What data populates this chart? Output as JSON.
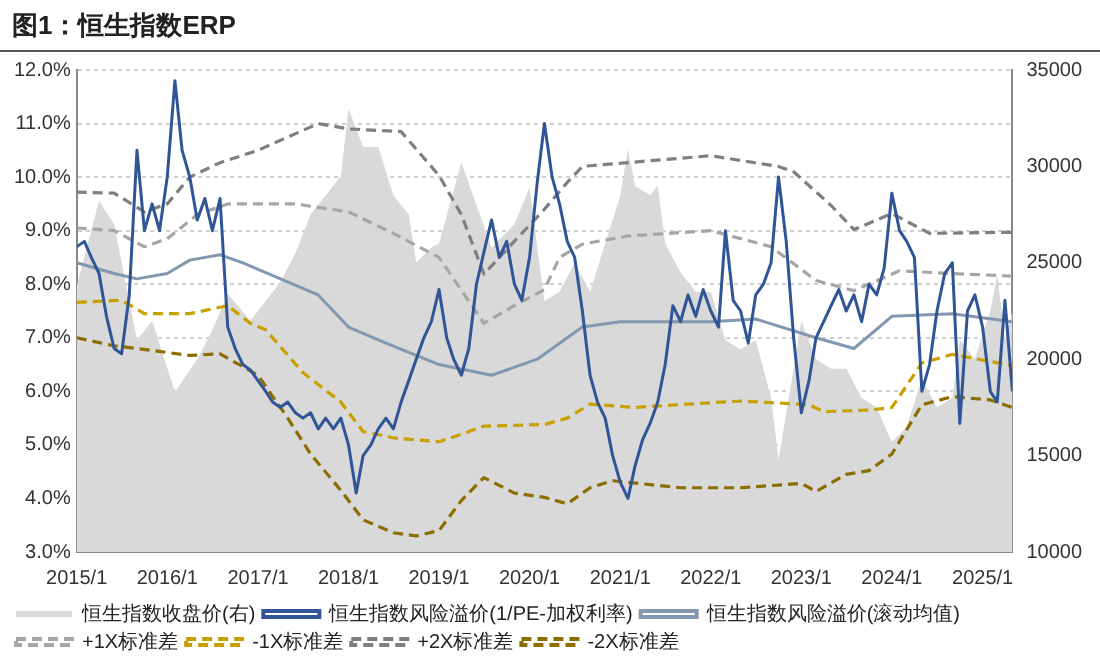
{
  "chart_data": {
    "type": "line",
    "title": "图1：恒生指数ERP",
    "xlim": [
      "2015-01",
      "2025-05"
    ],
    "xticks": [
      {
        "value": "2015-01",
        "label": "2015/1"
      },
      {
        "value": "2016-01",
        "label": "2016/1"
      },
      {
        "value": "2017-01",
        "label": "2017/1"
      },
      {
        "value": "2018-01",
        "label": "2018/1"
      },
      {
        "value": "2019-01",
        "label": "2019/1"
      },
      {
        "value": "2020-01",
        "label": "2020/1"
      },
      {
        "value": "2021-01",
        "label": "2021/1"
      },
      {
        "value": "2022-01",
        "label": "2022/1"
      },
      {
        "value": "2023-01",
        "label": "2023/1"
      },
      {
        "value": "2024-01",
        "label": "2024/1"
      },
      {
        "value": "2025-01",
        "label": "2025/1"
      }
    ],
    "ylim": [
      3,
      12
    ],
    "yticks": [
      {
        "value": 3,
        "label": "3.0%"
      },
      {
        "value": 4,
        "label": "4.0%"
      },
      {
        "value": 5,
        "label": "5.0%"
      },
      {
        "value": 6,
        "label": "6.0%"
      },
      {
        "value": 7,
        "label": "7.0%"
      },
      {
        "value": 8,
        "label": "8.0%"
      },
      {
        "value": 9,
        "label": "9.0%"
      },
      {
        "value": 10,
        "label": "10.0%"
      },
      {
        "value": 11,
        "label": "11.0%"
      },
      {
        "value": 12,
        "label": "12.0%"
      }
    ],
    "y2lim": [
      10000,
      35000
    ],
    "y2ticks": [
      10000,
      15000,
      20000,
      25000,
      30000,
      35000
    ],
    "grid": "y",
    "legend": "bottom",
    "marker": "none",
    "series": [
      {
        "name": "恒生指数收盘价(右)",
        "type": "area",
        "axis": "y2",
        "color": "#d9d9d9",
        "x": [
          "2015-01",
          "2015-04",
          "2015-06",
          "2015-08",
          "2015-09",
          "2015-11",
          "2016-02",
          "2016-05",
          "2016-07",
          "2016-09",
          "2016-12",
          "2017-01",
          "2017-04",
          "2017-06",
          "2017-08",
          "2017-10",
          "2017-12",
          "2018-01",
          "2018-03",
          "2018-05",
          "2018-07",
          "2018-09",
          "2018-10",
          "2018-12",
          "2019-01",
          "2019-04",
          "2019-06",
          "2019-08",
          "2019-11",
          "2020-01",
          "2020-03",
          "2020-05",
          "2020-07",
          "2020-09",
          "2020-11",
          "2021-01",
          "2021-02",
          "2021-03",
          "2021-05",
          "2021-06",
          "2021-07",
          "2021-09",
          "2021-11",
          "2022-01",
          "2022-03",
          "2022-05",
          "2022-07",
          "2022-09",
          "2022-10",
          "2022-12",
          "2023-01",
          "2023-03",
          "2023-05",
          "2023-07",
          "2023-09",
          "2023-11",
          "2024-01",
          "2024-03",
          "2024-05",
          "2024-07",
          "2024-09",
          "2024-10",
          "2024-12",
          "2025-02",
          "2025-03",
          "2025-04",
          "2025-05"
        ],
        "values": [
          23800,
          28200,
          27000,
          23000,
          21000,
          22000,
          18300,
          20000,
          21500,
          23400,
          22000,
          22500,
          24000,
          25500,
          27500,
          28500,
          29500,
          33000,
          31000,
          31000,
          28500,
          27500,
          25000,
          25800,
          26000,
          30200,
          28000,
          25800,
          27000,
          28900,
          23000,
          23500,
          25000,
          23500,
          26000,
          28500,
          30900,
          29000,
          28500,
          29000,
          26000,
          24500,
          23500,
          23500,
          21000,
          20500,
          21000,
          18000,
          14800,
          19500,
          22000,
          20000,
          19500,
          19500,
          18000,
          17500,
          15700,
          16500,
          19000,
          17500,
          18000,
          21000,
          20000,
          22500,
          24400,
          21000,
          22500
        ]
      },
      {
        "name": "恒生指数风险溢价(1/PE-加权利率)",
        "type": "line",
        "color": "#2f5597",
        "x": [
          "2015-01",
          "2015-02",
          "2015-03",
          "2015-04",
          "2015-05",
          "2015-06",
          "2015-07",
          "2015-08",
          "2015-09",
          "2015-10",
          "2015-11",
          "2015-12",
          "2016-01",
          "2016-02",
          "2016-03",
          "2016-04",
          "2016-05",
          "2016-06",
          "2016-07",
          "2016-08",
          "2016-09",
          "2016-10",
          "2016-11",
          "2016-12",
          "2017-01",
          "2017-02",
          "2017-03",
          "2017-04",
          "2017-05",
          "2017-06",
          "2017-07",
          "2017-08",
          "2017-09",
          "2017-10",
          "2017-11",
          "2017-12",
          "2018-01",
          "2018-02",
          "2018-03",
          "2018-04",
          "2018-05",
          "2018-06",
          "2018-07",
          "2018-08",
          "2018-09",
          "2018-10",
          "2018-11",
          "2018-12",
          "2019-01",
          "2019-02",
          "2019-03",
          "2019-04",
          "2019-05",
          "2019-06",
          "2019-07",
          "2019-08",
          "2019-09",
          "2019-10",
          "2019-11",
          "2019-12",
          "2020-01",
          "2020-02",
          "2020-03",
          "2020-04",
          "2020-05",
          "2020-06",
          "2020-07",
          "2020-08",
          "2020-09",
          "2020-10",
          "2020-11",
          "2020-12",
          "2021-01",
          "2021-02",
          "2021-03",
          "2021-04",
          "2021-05",
          "2021-06",
          "2021-07",
          "2021-08",
          "2021-09",
          "2021-10",
          "2021-11",
          "2021-12",
          "2022-01",
          "2022-02",
          "2022-03",
          "2022-04",
          "2022-05",
          "2022-06",
          "2022-07",
          "2022-08",
          "2022-09",
          "2022-10",
          "2022-11",
          "2022-12",
          "2023-01",
          "2023-02",
          "2023-03",
          "2023-04",
          "2023-05",
          "2023-06",
          "2023-07",
          "2023-08",
          "2023-09",
          "2023-10",
          "2023-11",
          "2023-12",
          "2024-01",
          "2024-02",
          "2024-03",
          "2024-04",
          "2024-05",
          "2024-06",
          "2024-07",
          "2024-08",
          "2024-09",
          "2024-10",
          "2024-11",
          "2024-12",
          "2025-01",
          "2025-02",
          "2025-03",
          "2025-04",
          "2025-05"
        ],
        "values": [
          8.7,
          8.8,
          8.5,
          8.2,
          7.4,
          6.8,
          6.7,
          7.8,
          10.5,
          9.0,
          9.5,
          9.0,
          10.0,
          11.8,
          10.5,
          10.0,
          9.2,
          9.6,
          9.0,
          9.6,
          7.2,
          6.8,
          6.5,
          6.4,
          6.2,
          6.0,
          5.8,
          5.7,
          5.8,
          5.6,
          5.5,
          5.6,
          5.3,
          5.5,
          5.3,
          5.5,
          5.0,
          4.1,
          4.8,
          5.0,
          5.3,
          5.5,
          5.3,
          5.8,
          6.2,
          6.6,
          7.0,
          7.3,
          7.9,
          7.0,
          6.6,
          6.3,
          6.8,
          8.0,
          8.6,
          9.2,
          8.5,
          8.8,
          8.0,
          7.7,
          8.5,
          9.9,
          11.0,
          10.0,
          9.5,
          8.8,
          8.5,
          7.5,
          6.3,
          5.8,
          5.5,
          4.8,
          4.3,
          4.0,
          4.6,
          5.1,
          5.4,
          5.8,
          6.5,
          7.6,
          7.3,
          7.8,
          7.4,
          7.9,
          7.5,
          7.2,
          9.0,
          7.7,
          7.5,
          6.9,
          7.8,
          8.0,
          8.4,
          10.0,
          8.8,
          7.0,
          5.6,
          6.2,
          7.0,
          7.3,
          7.6,
          7.9,
          7.5,
          7.8,
          7.3,
          8.0,
          7.8,
          8.3,
          9.7,
          9.0,
          8.8,
          8.5,
          6.0,
          6.5,
          7.5,
          8.2,
          8.4,
          5.4,
          7.5,
          7.8,
          7.2,
          6.0,
          5.8,
          7.7,
          6.0
        ]
      },
      {
        "name": "恒生指数风险溢价(滚动均值)",
        "type": "line",
        "color": "#8497b0",
        "x": [
          "2015-01",
          "2015-06",
          "2015-09",
          "2016-01",
          "2016-04",
          "2016-08",
          "2016-11",
          "2017-09",
          "2018-01",
          "2018-06",
          "2019-01",
          "2019-08",
          "2020-02",
          "2020-08",
          "2021-01",
          "2022-01",
          "2022-07",
          "2023-03",
          "2023-08",
          "2024-01",
          "2024-09",
          "2025-05"
        ],
        "values": [
          8.4,
          8.2,
          8.1,
          8.2,
          8.45,
          8.55,
          8.4,
          7.8,
          7.2,
          6.9,
          6.5,
          6.3,
          6.6,
          7.2,
          7.3,
          7.3,
          7.35,
          7.0,
          6.8,
          7.4,
          7.45,
          7.3
        ]
      },
      {
        "name": "+1X标准差",
        "type": "line",
        "line_style": "dashed",
        "color": "#a6a6a6",
        "x": [
          "2015-01",
          "2015-06",
          "2015-10",
          "2016-01",
          "2016-05",
          "2016-09",
          "2017-06",
          "2018-01",
          "2018-07",
          "2019-01",
          "2019-07",
          "2019-11",
          "2020-03",
          "2020-05",
          "2020-08",
          "2021-02",
          "2022-01",
          "2022-09",
          "2023-03",
          "2023-08",
          "2024-02",
          "2024-09",
          "2025-05"
        ],
        "values": [
          9.05,
          9.0,
          8.7,
          8.85,
          9.3,
          9.5,
          9.5,
          9.35,
          8.95,
          8.5,
          7.27,
          7.6,
          7.9,
          8.5,
          8.75,
          8.9,
          9.0,
          8.7,
          8.07,
          7.88,
          8.25,
          8.2,
          8.15
        ]
      },
      {
        "name": "-1X标准差",
        "type": "line",
        "line_style": "dashed",
        "color": "#c9a000",
        "x": [
          "2015-01",
          "2015-07",
          "2015-10",
          "2016-04",
          "2016-09",
          "2016-12",
          "2017-02",
          "2017-07",
          "2017-12",
          "2018-03",
          "2018-07",
          "2019-01",
          "2019-04",
          "2019-07",
          "2020-03",
          "2020-06",
          "2020-09",
          "2021-03",
          "2022-05",
          "2023-02",
          "2023-04",
          "2023-10",
          "2024-01",
          "2024-05",
          "2024-09",
          "2025-05"
        ],
        "values": [
          7.66,
          7.7,
          7.45,
          7.45,
          7.6,
          7.27,
          7.15,
          6.35,
          5.8,
          5.25,
          5.13,
          5.06,
          5.2,
          5.35,
          5.38,
          5.5,
          5.76,
          5.7,
          5.82,
          5.75,
          5.62,
          5.65,
          5.7,
          6.53,
          6.69,
          6.48
        ]
      },
      {
        "name": "+2X标准差",
        "type": "line",
        "line_style": "dashed",
        "color": "#7f7f7f",
        "x": [
          "2015-01",
          "2015-06",
          "2015-10",
          "2016-01",
          "2016-04",
          "2016-08",
          "2017-01",
          "2017-09",
          "2018-01",
          "2018-08",
          "2019-01",
          "2019-04",
          "2019-07",
          "2019-09",
          "2020-03",
          "2020-06",
          "2020-08",
          "2022-01",
          "2022-10",
          "2022-12",
          "2023-05",
          "2023-08",
          "2024-01",
          "2024-06",
          "2025-05"
        ],
        "values": [
          9.72,
          9.7,
          9.35,
          9.5,
          10.0,
          10.27,
          10.5,
          11.0,
          10.9,
          10.85,
          10.03,
          9.3,
          8.19,
          8.5,
          9.4,
          9.9,
          10.2,
          10.4,
          10.2,
          10.1,
          9.47,
          9.02,
          9.32,
          8.95,
          8.97
        ]
      },
      {
        "name": "-2X标准差",
        "type": "line",
        "line_style": "dashed",
        "color": "#8c6d00",
        "x": [
          "2015-01",
          "2015-06",
          "2015-09",
          "2016-04",
          "2016-08",
          "2017-01",
          "2017-05",
          "2017-08",
          "2017-12",
          "2018-03",
          "2018-07",
          "2018-10",
          "2019-01",
          "2019-04",
          "2019-07",
          "2019-11",
          "2020-03",
          "2020-06",
          "2020-09",
          "2020-12",
          "2021-09",
          "2022-05",
          "2023-01",
          "2023-03",
          "2023-07",
          "2023-10",
          "2024-01",
          "2024-05",
          "2024-09",
          "2025-02",
          "2025-05"
        ],
        "values": [
          7.0,
          6.85,
          6.8,
          6.67,
          6.7,
          6.3,
          5.5,
          4.83,
          4.15,
          3.6,
          3.36,
          3.3,
          3.4,
          3.96,
          4.39,
          4.1,
          4.02,
          3.9,
          4.2,
          4.33,
          4.2,
          4.2,
          4.28,
          4.13,
          4.45,
          4.52,
          4.83,
          5.75,
          5.9,
          5.84,
          5.7
        ]
      }
    ]
  }
}
